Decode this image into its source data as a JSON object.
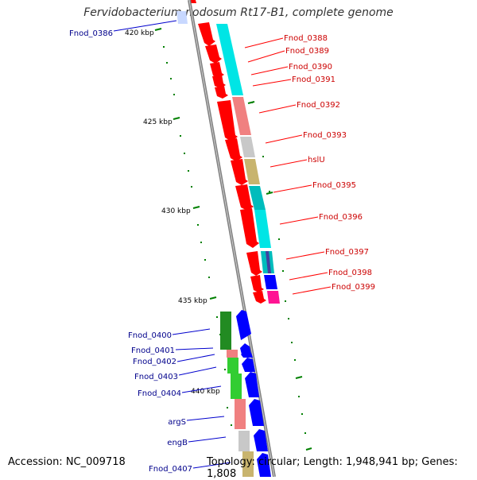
{
  "title": "Fervidobacterium nodosum Rt17-B1, complete genome",
  "accession": "Accession: NC_009718",
  "topology": "Topology: circular; Length: 1,948,941 bp; Genes: 1,808",
  "scale_labels": [
    "420 kbp",
    "425 kbp",
    "430 kbp",
    "435 kbp",
    "440 kbp"
  ],
  "right_genes": [
    "Fnod_0388",
    "Fnod_0389",
    "Fnod_0390",
    "Fnod_0391",
    "Fnod_0392",
    "Fnod_0393",
    "hslU",
    "Fnod_0395",
    "Fnod_0396",
    "Fnod_0397",
    "Fnod_0398",
    "Fnod_0399"
  ],
  "left_genes": [
    "Fnod_0386",
    "Fnod_0400",
    "Fnod_0401",
    "Fnod_0402",
    "Fnod_0403",
    "Fnod_0404",
    "argS",
    "engB",
    "Fnod_0407"
  ],
  "colors": {
    "forward_strand": "#ff0000",
    "reverse_strand": "#0000ff",
    "right_label": "#cc0000",
    "left_label": "#00008b",
    "cog_cyan": "#00e5e5",
    "cog_pink": "#f08080",
    "cog_grey": "#c8c8c8",
    "cog_olive": "#c8b46e",
    "cog_teal": "#00bcbc",
    "cog_magenta": "#ff1493",
    "cog_darkgreen": "#228b22",
    "cog_green": "#32cd32",
    "scale_tick": "#008000",
    "backbone": "#808080"
  }
}
